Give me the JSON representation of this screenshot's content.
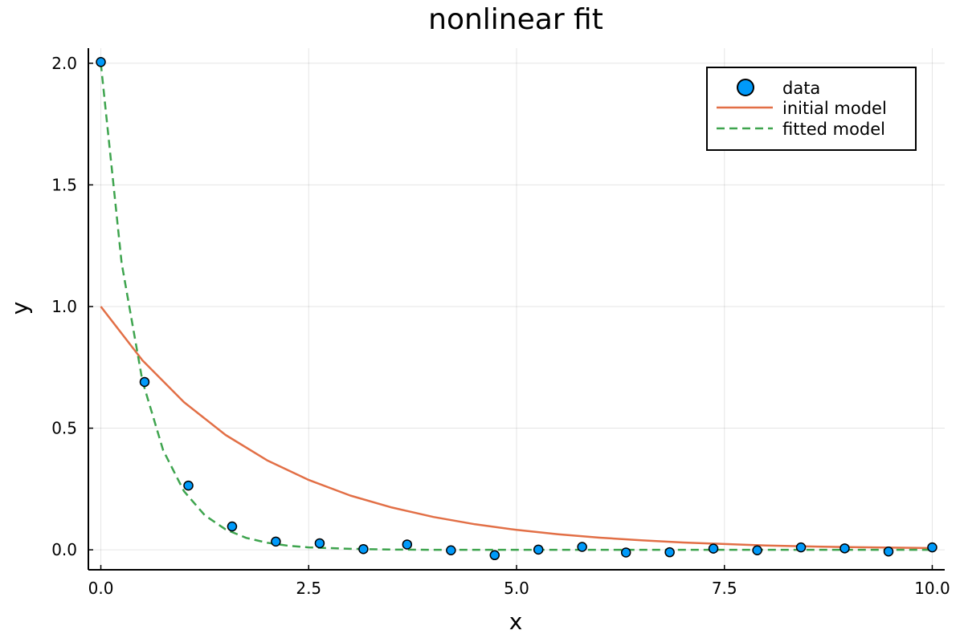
{
  "chart_data": {
    "type": "scatter",
    "title": "nonlinear fit",
    "xlabel": "x",
    "ylabel": "y",
    "xlim": [
      -0.15,
      10.15
    ],
    "ylim": [
      -0.082,
      2.062
    ],
    "xticks": [
      0,
      2.5,
      5,
      7.5,
      10
    ],
    "xtick_labels": [
      "0.0",
      "2.5",
      "5.0",
      "7.5",
      "10.0"
    ],
    "yticks": [
      0,
      0.5,
      1,
      1.5,
      2
    ],
    "ytick_labels": [
      "0.0",
      "0.5",
      "1.0",
      "1.5",
      "2.0"
    ],
    "grid": true,
    "legend_position": "top-right",
    "series": [
      {
        "name": "data",
        "kind": "scatter",
        "color": "#009AFA",
        "x": [
          0,
          0.526,
          1.053,
          1.579,
          2.105,
          2.632,
          3.158,
          3.684,
          4.211,
          4.737,
          5.263,
          5.789,
          6.316,
          6.842,
          7.368,
          7.895,
          8.421,
          8.947,
          9.474,
          10
        ],
        "y": [
          2.005,
          0.69,
          0.264,
          0.096,
          0.034,
          0.027,
          0.003,
          0.022,
          -0.002,
          -0.022,
          0.001,
          0.012,
          -0.011,
          -0.01,
          0.005,
          -0.002,
          0.01,
          0.006,
          -0.007,
          0.01
        ]
      },
      {
        "name": "initial model",
        "kind": "line",
        "color": "#E26F46",
        "dash": "solid",
        "x": [
          0,
          0.5,
          1,
          1.5,
          2,
          2.5,
          3,
          3.5,
          4,
          4.5,
          5,
          5.5,
          6,
          6.5,
          7,
          7.5,
          8,
          8.5,
          9,
          9.5,
          10
        ],
        "y": [
          1.0,
          0.779,
          0.607,
          0.472,
          0.368,
          0.287,
          0.223,
          0.174,
          0.135,
          0.105,
          0.082,
          0.064,
          0.05,
          0.039,
          0.03,
          0.024,
          0.018,
          0.014,
          0.011,
          0.009,
          0.007
        ]
      },
      {
        "name": "fitted model",
        "kind": "line",
        "color": "#3EA44E",
        "dash": "dashed",
        "x": [
          0,
          0.25,
          0.5,
          0.75,
          1,
          1.25,
          1.5,
          1.75,
          2,
          2.25,
          2.5,
          3,
          3.5,
          4,
          5,
          6,
          7,
          8,
          9,
          10
        ],
        "y": [
          2.0,
          1.179,
          0.694,
          0.409,
          0.241,
          0.142,
          0.084,
          0.049,
          0.029,
          0.017,
          0.01,
          0.004,
          0.001,
          0.0,
          0.0,
          0.0,
          0.0,
          0.0,
          0.0,
          0.0
        ]
      }
    ]
  }
}
